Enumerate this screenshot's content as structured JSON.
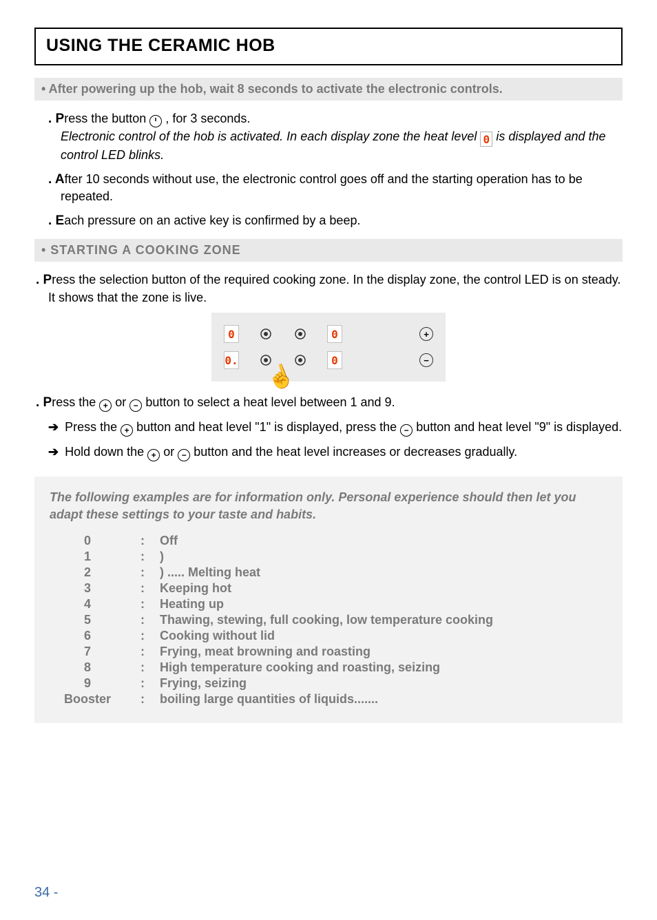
{
  "title": "USING THE CERAMIC HOB",
  "intro_bar": "• After powering up the hob, wait 8 seconds to activate the electronic controls.",
  "para1": {
    "lead": ". P",
    "rest1": "ress the button ",
    "rest2": " , for 3 seconds.",
    "ital1": "Electronic control of the hob is activated. In each display zone the heat level ",
    "ital2": " is displayed and the control LED blinks."
  },
  "para2": {
    "lead": ". A",
    "rest": "fter 10 seconds without use, the electronic control goes off and the starting operation has to be repeated."
  },
  "para3": {
    "lead": ". E",
    "rest": "ach pressure on an active key is confirmed by a beep."
  },
  "section_bar": "• STARTING A COOKING ZONE",
  "para4": {
    "lead": ". P",
    "rest": "ress the selection button of the required cooking zone. In the display zone, the control LED is on steady. It shows that the zone is live."
  },
  "panel": {
    "background": "#ebebeb",
    "digit_color": "#e63900",
    "displays": [
      "0",
      "0",
      "0.",
      "0"
    ],
    "plus": "+",
    "minus": "−"
  },
  "para5": {
    "lead": ". P",
    "rest1": "ress the ",
    "rest2": " or ",
    "rest3": " button to select a heat level between 1 and 9."
  },
  "para6": {
    "arrow": "➔",
    "text1": " Press the  ",
    "text2": "  button and heat level \"1\" is displayed, press the ",
    "text3": " button and heat level \"9\" is displayed."
  },
  "para7": {
    "arrow": "➔",
    "text1": " Hold down the ",
    "text2": " or ",
    "text3": " button and the heat level increases or decreases gradually."
  },
  "examples": {
    "intro": "The following examples are for information only. Personal experience should then let you adapt these settings to your taste and habits.",
    "rows": [
      {
        "level": "0",
        "desc": "Off"
      },
      {
        "level": "1",
        "desc": ")"
      },
      {
        "level": "2",
        "desc": ") ..... Melting heat"
      },
      {
        "level": "3",
        "desc": "Keeping hot"
      },
      {
        "level": "4",
        "desc": "Heating up"
      },
      {
        "level": "5",
        "desc": "Thawing, stewing, full cooking, low temperature cooking"
      },
      {
        "level": "6",
        "desc": "Cooking without lid"
      },
      {
        "level": "7",
        "desc": "Frying, meat browning and roasting"
      },
      {
        "level": "8",
        "desc": "High temperature cooking and roasting, seizing"
      },
      {
        "level": "9",
        "desc": "Frying, seizing"
      },
      {
        "level": "Booster",
        "desc": "boiling large quantities of liquids......."
      }
    ]
  },
  "page_number": "34 -",
  "colors": {
    "gray_text": "#7a7a7a",
    "gray_bg": "#e9e9e9",
    "examples_bg": "#f2f2f2",
    "page_num_color": "#3a6aa8",
    "digit_red": "#e63900"
  }
}
